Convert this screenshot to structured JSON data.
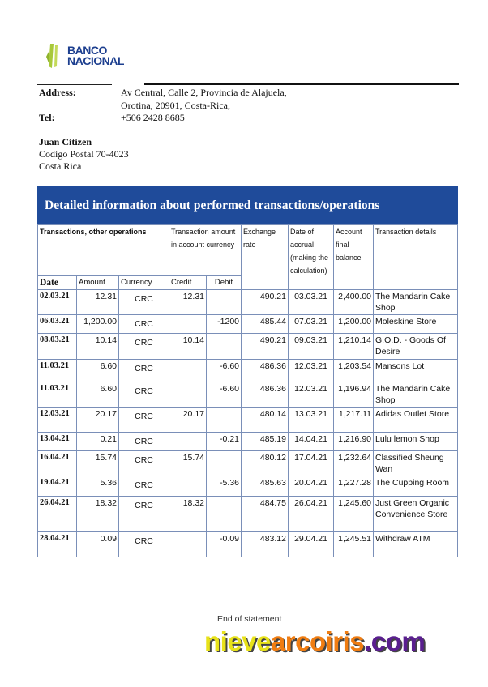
{
  "bank": {
    "logo_text_1": "BANCO",
    "logo_text_2": "NACIONAL",
    "colors": {
      "brand_blue": "#1d3f8f",
      "logo_green": "#a8c93a",
      "header_bar": "#1f4b9a"
    }
  },
  "contact": {
    "address_label": "Address:",
    "address_line1": "Av Central, Calle 2, Provincia de Alajuela,",
    "address_line2": "Orotina, 20901, Costa-Rica,",
    "tel_label": "Tel:",
    "tel": "+506 2428 8685"
  },
  "customer": {
    "name": "Juan Citizen",
    "line1": "Codigo Postal 70-4023",
    "line2": "Costa Rica"
  },
  "section_title": "Detailed information about performed transactions/operations",
  "table": {
    "headers": {
      "group": "Transactions, other operations",
      "tx_amount": "Transaction amount in account currency",
      "exchange": "Exchange rate",
      "accrual": "Date of accrual (making the calculation)",
      "balance": "Account final balance",
      "details": "Transaction details",
      "date": "Date",
      "amount": "Amount",
      "currency": "Currency",
      "credit": "Credit",
      "debit": "Debit"
    },
    "rows": [
      {
        "date": "02.03.21",
        "amount": "12.31",
        "currency": "CRC",
        "credit": "12.31",
        "debit": "",
        "rate": "490.21",
        "accrual": "03.03.21",
        "balance": "2,400.00",
        "details": "The Mandarin Cake Shop"
      },
      {
        "date": "06.03.21",
        "amount": "1,200.00",
        "currency": "CRC",
        "credit": "",
        "debit": "-1200",
        "rate": "485.44",
        "accrual": "07.03.21",
        "balance": "1,200.00",
        "details": "Moleskine Store"
      },
      {
        "date": "08.03.21",
        "amount": "10.14",
        "currency": "CRC",
        "credit": "10.14",
        "debit": "",
        "rate": "490.21",
        "accrual": "09.03.21",
        "balance": "1,210.14",
        "details": "G.O.D. - Goods Of Desire"
      },
      {
        "date": "11.03.21",
        "amount": "6.60",
        "currency": "CRC",
        "credit": "",
        "debit": "-6.60",
        "rate": "486.36",
        "accrual": "12.03.21",
        "balance": "1,203.54",
        "details": "Mansons Lot"
      },
      {
        "date": "11.03.21",
        "amount": "6.60",
        "currency": "CRC",
        "credit": "",
        "debit": "-6.60",
        "rate": "486.36",
        "accrual": "12.03.21",
        "balance": "1,196.94",
        "details": "The Mandarin Cake Shop"
      },
      {
        "date": "12.03.21",
        "amount": "20.17",
        "currency": "CRC",
        "credit": "20.17",
        "debit": "",
        "rate": "480.14",
        "accrual": "13.03.21",
        "balance": "1,217.11",
        "details": "Adidas Outlet Store"
      },
      {
        "date": "13.04.21",
        "amount": "0.21",
        "currency": "CRC",
        "credit": "",
        "debit": "-0.21",
        "rate": "485.19",
        "accrual": "14.04.21",
        "balance": "1,216.90",
        "details": "Lulu lemon Shop"
      },
      {
        "date": "16.04.21",
        "amount": "15.74",
        "currency": "CRC",
        "credit": "15.74",
        "debit": "",
        "rate": "480.12",
        "accrual": "17.04.21",
        "balance": "1,232.64",
        "details": "Classified Sheung Wan"
      },
      {
        "date": "19.04.21",
        "amount": "5.36",
        "currency": "CRC",
        "credit": "",
        "debit": "-5.36",
        "rate": "485.63",
        "accrual": "20.04.21",
        "balance": "1,227.28",
        "details": "The Cupping Room"
      },
      {
        "date": "26.04.21",
        "amount": "18.32",
        "currency": "CRC",
        "credit": "18.32",
        "debit": "",
        "rate": "484.75",
        "accrual": "26.04.21",
        "balance": "1,245.60",
        "details": "Just Green Organic Convenience Store"
      },
      {
        "date": "28.04.21",
        "amount": "0.09",
        "currency": "CRC",
        "credit": "",
        "debit": "-0.09",
        "rate": "483.12",
        "accrual": "29.04.21",
        "balance": "1,245.51",
        "details": "Withdraw ATM"
      }
    ]
  },
  "footer": {
    "end_text": "End of statement"
  },
  "watermark": {
    "part1": "nieve",
    "part2": "arcoiris",
    "part3": ".com",
    "colors": [
      "#e8e21a",
      "#f07d12",
      "#5a1f8f"
    ]
  }
}
